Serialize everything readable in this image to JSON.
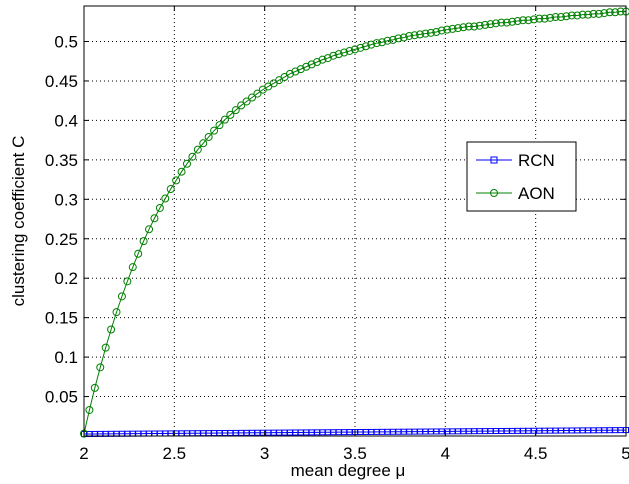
{
  "chart_data": {
    "type": "line",
    "title": "",
    "xlabel": "mean degree μ",
    "ylabel": "clustering coefficient C",
    "xlim": [
      2,
      5
    ],
    "ylim": [
      0,
      0.545
    ],
    "grid": true,
    "legend_position": "right",
    "x_ticks": [
      2,
      2.5,
      3,
      3.5,
      4,
      4.5,
      5
    ],
    "x_tick_labels": [
      "2",
      "2.5",
      "3",
      "3.5",
      "4",
      "4.5",
      "5"
    ],
    "y_ticks": [
      0.05,
      0.1,
      0.15,
      0.2,
      0.25,
      0.3,
      0.35,
      0.4,
      0.45,
      0.5
    ],
    "y_tick_labels": [
      "0.05",
      "0.1",
      "0.15",
      "0.2",
      "0.25",
      "0.3",
      "0.35",
      "0.4",
      "0.45",
      "0.5"
    ],
    "series": [
      {
        "name": "RCN",
        "color": "#0000ff",
        "marker": "square",
        "x_start": 2.0,
        "x_end": 5.0,
        "x_step": 0.03,
        "values": [
          0.0025,
          0.00255,
          0.0026,
          0.00265,
          0.0027,
          0.00275,
          0.0028,
          0.00285,
          0.0029,
          0.00295,
          0.003,
          0.00305,
          0.0031,
          0.00315,
          0.0032,
          0.00325,
          0.0033,
          0.00335,
          0.0034,
          0.00345,
          0.0035,
          0.00355,
          0.0036,
          0.00365,
          0.0037,
          0.00375,
          0.0038,
          0.00385,
          0.0039,
          0.00395,
          0.004,
          0.00405,
          0.0041,
          0.00415,
          0.0042,
          0.00425,
          0.0043,
          0.00435,
          0.0044,
          0.00445,
          0.0045,
          0.00455,
          0.0046,
          0.00465,
          0.0047,
          0.00475,
          0.0048,
          0.00485,
          0.0049,
          0.00495,
          0.005,
          0.00505,
          0.0051,
          0.00515,
          0.0052,
          0.00525,
          0.0053,
          0.00535,
          0.0054,
          0.00545,
          0.0055,
          0.00555,
          0.0056,
          0.00565,
          0.0057,
          0.00575,
          0.0058,
          0.00585,
          0.0059,
          0.00595,
          0.006,
          0.00605,
          0.0061,
          0.00615,
          0.0062,
          0.00625,
          0.0063,
          0.00635,
          0.0064,
          0.00645,
          0.0065,
          0.00655,
          0.0066,
          0.00665,
          0.0067,
          0.00675,
          0.0068,
          0.00685,
          0.0069,
          0.00695,
          0.007,
          0.00705,
          0.0071,
          0.00715,
          0.0072,
          0.00725,
          0.0073,
          0.00735,
          0.0074,
          0.00745,
          0.0075
        ]
      },
      {
        "name": "AON",
        "color": "#008000",
        "marker": "circle",
        "x_start": 2.0,
        "x_end": 5.0,
        "x_step": 0.03,
        "values": [
          0.003,
          0.033,
          0.061,
          0.087,
          0.112,
          0.135,
          0.157,
          0.177,
          0.196,
          0.214,
          0.231,
          0.247,
          0.262,
          0.276,
          0.289,
          0.301,
          0.313,
          0.324,
          0.335,
          0.345,
          0.354,
          0.363,
          0.371,
          0.379,
          0.387,
          0.394,
          0.401,
          0.407,
          0.413,
          0.419,
          0.424,
          0.429,
          0.434,
          0.439,
          0.443,
          0.447,
          0.451,
          0.455,
          0.459,
          0.462,
          0.465,
          0.468,
          0.471,
          0.474,
          0.477,
          0.479,
          0.482,
          0.484,
          0.486,
          0.488,
          0.49,
          0.492,
          0.494,
          0.496,
          0.498,
          0.499,
          0.501,
          0.502,
          0.504,
          0.505,
          0.507,
          0.508,
          0.509,
          0.51,
          0.511,
          0.512,
          0.514,
          0.515,
          0.516,
          0.517,
          0.518,
          0.519,
          0.519,
          0.52,
          0.521,
          0.522,
          0.523,
          0.524,
          0.524,
          0.525,
          0.526,
          0.527,
          0.527,
          0.528,
          0.529,
          0.529,
          0.53,
          0.531,
          0.531,
          0.532,
          0.533,
          0.533,
          0.534,
          0.534,
          0.535,
          0.535,
          0.536,
          0.537,
          0.537,
          0.538,
          0.538
        ]
      }
    ]
  }
}
